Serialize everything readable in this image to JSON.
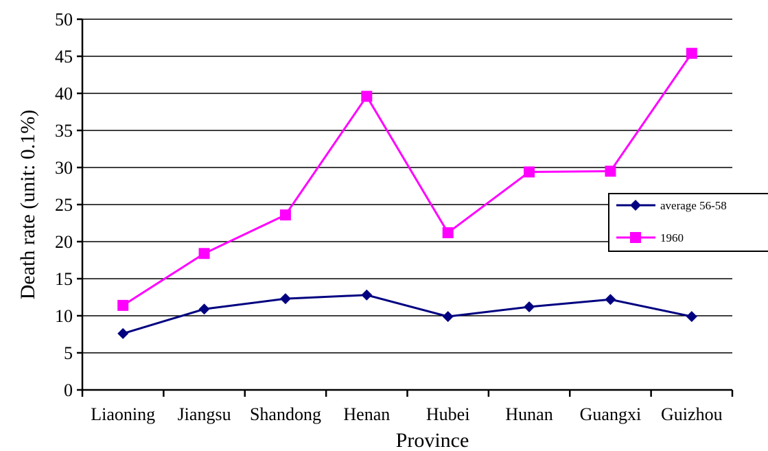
{
  "chart_data": {
    "type": "line",
    "title": "",
    "xlabel": "Province",
    "ylabel": "Death rate (unit: 0.1%)",
    "ylim": [
      0,
      50
    ],
    "yticks": [
      "0",
      "5",
      "10",
      "15",
      "20",
      "25",
      "30",
      "35",
      "40",
      "45",
      "50"
    ],
    "grid": "horizontal",
    "legend_position": "right",
    "categories": [
      "Liaoning",
      "Jiangsu",
      "Shandong",
      "Henan",
      "Hubei",
      "Hunan",
      "Guangxi",
      "Guizhou"
    ],
    "series": [
      {
        "name": "average 56-58",
        "marker": "diamond",
        "color": "#000080",
        "values": [
          7.6,
          10.9,
          12.3,
          12.8,
          9.9,
          11.2,
          12.2,
          9.9
        ]
      },
      {
        "name": "1960",
        "marker": "square",
        "color": "#ff00ff",
        "values": [
          11.4,
          18.4,
          23.6,
          39.6,
          21.2,
          29.4,
          29.5,
          45.4
        ]
      }
    ]
  }
}
